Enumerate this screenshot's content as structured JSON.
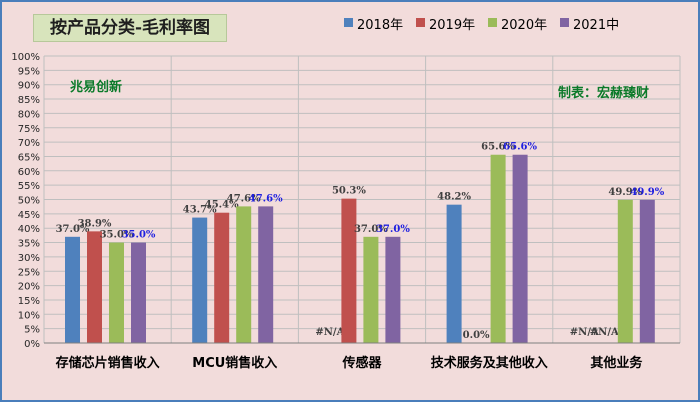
{
  "chart_data": {
    "type": "bar",
    "title": "按产品分类-毛利率图",
    "categories": [
      "存储芯片销售收入",
      "MCU销售收入",
      "传感器",
      "技术服务及其他收入",
      "其他业务"
    ],
    "series": [
      {
        "name": "2018年",
        "color": "#4f81bd",
        "values": [
          37.0,
          43.7,
          null,
          48.2,
          null
        ],
        "labels": [
          "37.0%",
          "43.7%",
          "#N/A",
          "48.2%",
          "#N/A"
        ]
      },
      {
        "name": "2019年",
        "color": "#c0504d",
        "values": [
          38.9,
          45.4,
          50.3,
          0.0,
          null
        ],
        "labels": [
          "38.9%",
          "45.4%",
          "50.3%",
          "0.0%",
          "#N/A"
        ]
      },
      {
        "name": "2020年",
        "color": "#9bbb59",
        "values": [
          35.0,
          47.6,
          37.0,
          65.6,
          49.9
        ],
        "labels": [
          "35.0%",
          "47.6%",
          "37.0%",
          "65.6%",
          "49.9%"
        ]
      },
      {
        "name": "2021中",
        "color": "#8064a2",
        "values": [
          35.0,
          47.6,
          37.0,
          65.6,
          49.9
        ],
        "labels": [
          "35.0%",
          "47.6%",
          "37.0%",
          "65.6%",
          "49.9%"
        ]
      }
    ],
    "ylim": [
      0,
      100
    ],
    "yticks": [
      "0%",
      "5%",
      "10%",
      "15%",
      "20%",
      "25%",
      "30%",
      "35%",
      "40%",
      "45%",
      "50%",
      "55%",
      "60%",
      "65%",
      "70%",
      "75%",
      "80%",
      "85%",
      "90%",
      "95%",
      "100%"
    ],
    "grid": true,
    "legend": "top-right",
    "xlabel": "",
    "ylabel": ""
  },
  "annotations": {
    "left_note": "兆易创新",
    "right_note": "制表：宏赫臻财"
  },
  "colors": {
    "background": "#f2dcdb",
    "border": "#4a7ebb",
    "title_bg": "#d8e4bc",
    "note_text": "#0b7a2a",
    "label_dark": "#404040",
    "label_blue": "#1f1fe0"
  }
}
